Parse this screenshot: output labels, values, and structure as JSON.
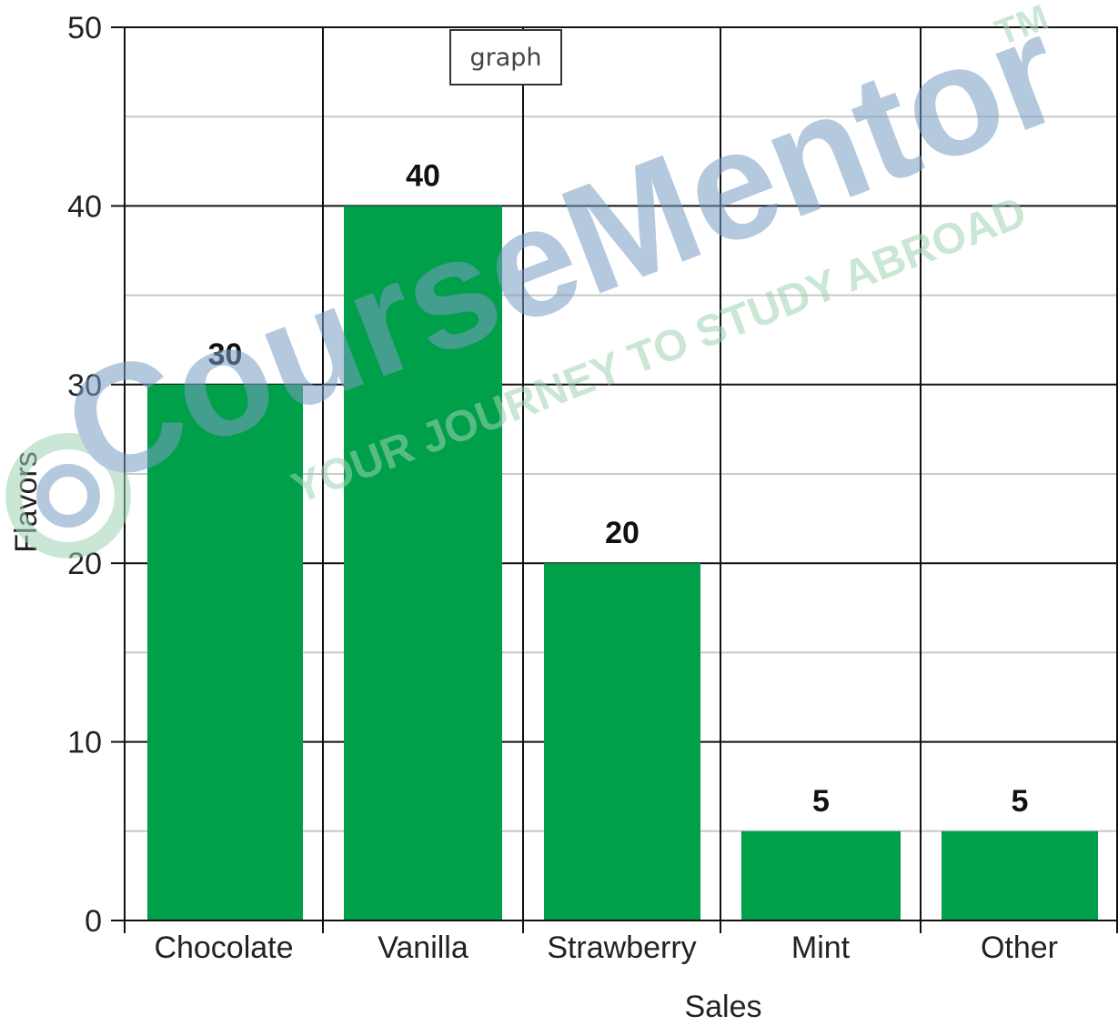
{
  "chart_data": {
    "type": "bar",
    "categories": [
      "Chocolate",
      "Vanilla",
      "Strawberry",
      "Mint",
      "Other"
    ],
    "values": [
      30,
      40,
      20,
      5,
      5
    ],
    "data_labels": [
      "30",
      "40",
      "20",
      "5",
      "5"
    ],
    "title": "",
    "xlabel": "Sales",
    "ylabel": "Flavors",
    "ylim": [
      0,
      50
    ],
    "yticks": [
      0,
      10,
      20,
      30,
      40,
      50
    ],
    "ytick_labels": [
      "0",
      "10",
      "20",
      "30",
      "40",
      "50"
    ],
    "grid": true,
    "legend": "none",
    "bar_color": "#00a04a"
  },
  "tag": {
    "text": "graph"
  },
  "watermark": {
    "brand": "CourseMentor",
    "tagline": "YOUR JOURNEY TO STUDY ABROAD",
    "mark": "TM"
  },
  "colors": {
    "bar": "#00a04a",
    "grid_major": "#111111",
    "grid_minor": "#c8c8c8",
    "watermark_brand": "#7a9ec4",
    "watermark_tagline": "#9fd3b4"
  }
}
